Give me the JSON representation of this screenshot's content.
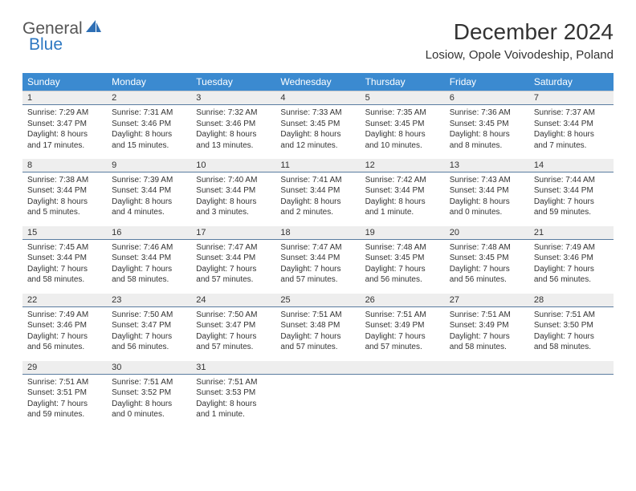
{
  "brand": {
    "word1": "General",
    "word2": "Blue",
    "sail_color": "#2e6fb5"
  },
  "title": "December 2024",
  "location": "Losiow, Opole Voivodeship, Poland",
  "colors": {
    "header_bg": "#3b8ad0",
    "header_text": "#ffffff",
    "daynum_bg": "#eeeeee",
    "cell_divider": "#5a7ca0",
    "text": "#333333"
  },
  "weekdays": [
    "Sunday",
    "Monday",
    "Tuesday",
    "Wednesday",
    "Thursday",
    "Friday",
    "Saturday"
  ],
  "weeks": [
    [
      {
        "n": "1",
        "sunrise": "7:29 AM",
        "sunset": "3:47 PM",
        "dl": "8 hours and 17 minutes."
      },
      {
        "n": "2",
        "sunrise": "7:31 AM",
        "sunset": "3:46 PM",
        "dl": "8 hours and 15 minutes."
      },
      {
        "n": "3",
        "sunrise": "7:32 AM",
        "sunset": "3:46 PM",
        "dl": "8 hours and 13 minutes."
      },
      {
        "n": "4",
        "sunrise": "7:33 AM",
        "sunset": "3:45 PM",
        "dl": "8 hours and 12 minutes."
      },
      {
        "n": "5",
        "sunrise": "7:35 AM",
        "sunset": "3:45 PM",
        "dl": "8 hours and 10 minutes."
      },
      {
        "n": "6",
        "sunrise": "7:36 AM",
        "sunset": "3:45 PM",
        "dl": "8 hours and 8 minutes."
      },
      {
        "n": "7",
        "sunrise": "7:37 AM",
        "sunset": "3:44 PM",
        "dl": "8 hours and 7 minutes."
      }
    ],
    [
      {
        "n": "8",
        "sunrise": "7:38 AM",
        "sunset": "3:44 PM",
        "dl": "8 hours and 5 minutes."
      },
      {
        "n": "9",
        "sunrise": "7:39 AM",
        "sunset": "3:44 PM",
        "dl": "8 hours and 4 minutes."
      },
      {
        "n": "10",
        "sunrise": "7:40 AM",
        "sunset": "3:44 PM",
        "dl": "8 hours and 3 minutes."
      },
      {
        "n": "11",
        "sunrise": "7:41 AM",
        "sunset": "3:44 PM",
        "dl": "8 hours and 2 minutes."
      },
      {
        "n": "12",
        "sunrise": "7:42 AM",
        "sunset": "3:44 PM",
        "dl": "8 hours and 1 minute."
      },
      {
        "n": "13",
        "sunrise": "7:43 AM",
        "sunset": "3:44 PM",
        "dl": "8 hours and 0 minutes."
      },
      {
        "n": "14",
        "sunrise": "7:44 AM",
        "sunset": "3:44 PM",
        "dl": "7 hours and 59 minutes."
      }
    ],
    [
      {
        "n": "15",
        "sunrise": "7:45 AM",
        "sunset": "3:44 PM",
        "dl": "7 hours and 58 minutes."
      },
      {
        "n": "16",
        "sunrise": "7:46 AM",
        "sunset": "3:44 PM",
        "dl": "7 hours and 58 minutes."
      },
      {
        "n": "17",
        "sunrise": "7:47 AM",
        "sunset": "3:44 PM",
        "dl": "7 hours and 57 minutes."
      },
      {
        "n": "18",
        "sunrise": "7:47 AM",
        "sunset": "3:44 PM",
        "dl": "7 hours and 57 minutes."
      },
      {
        "n": "19",
        "sunrise": "7:48 AM",
        "sunset": "3:45 PM",
        "dl": "7 hours and 56 minutes."
      },
      {
        "n": "20",
        "sunrise": "7:48 AM",
        "sunset": "3:45 PM",
        "dl": "7 hours and 56 minutes."
      },
      {
        "n": "21",
        "sunrise": "7:49 AM",
        "sunset": "3:46 PM",
        "dl": "7 hours and 56 minutes."
      }
    ],
    [
      {
        "n": "22",
        "sunrise": "7:49 AM",
        "sunset": "3:46 PM",
        "dl": "7 hours and 56 minutes."
      },
      {
        "n": "23",
        "sunrise": "7:50 AM",
        "sunset": "3:47 PM",
        "dl": "7 hours and 56 minutes."
      },
      {
        "n": "24",
        "sunrise": "7:50 AM",
        "sunset": "3:47 PM",
        "dl": "7 hours and 57 minutes."
      },
      {
        "n": "25",
        "sunrise": "7:51 AM",
        "sunset": "3:48 PM",
        "dl": "7 hours and 57 minutes."
      },
      {
        "n": "26",
        "sunrise": "7:51 AM",
        "sunset": "3:49 PM",
        "dl": "7 hours and 57 minutes."
      },
      {
        "n": "27",
        "sunrise": "7:51 AM",
        "sunset": "3:49 PM",
        "dl": "7 hours and 58 minutes."
      },
      {
        "n": "28",
        "sunrise": "7:51 AM",
        "sunset": "3:50 PM",
        "dl": "7 hours and 58 minutes."
      }
    ],
    [
      {
        "n": "29",
        "sunrise": "7:51 AM",
        "sunset": "3:51 PM",
        "dl": "7 hours and 59 minutes."
      },
      {
        "n": "30",
        "sunrise": "7:51 AM",
        "sunset": "3:52 PM",
        "dl": "8 hours and 0 minutes."
      },
      {
        "n": "31",
        "sunrise": "7:51 AM",
        "sunset": "3:53 PM",
        "dl": "8 hours and 1 minute."
      },
      null,
      null,
      null,
      null
    ]
  ],
  "labels": {
    "sunrise": "Sunrise:",
    "sunset": "Sunset:",
    "daylight": "Daylight:"
  }
}
